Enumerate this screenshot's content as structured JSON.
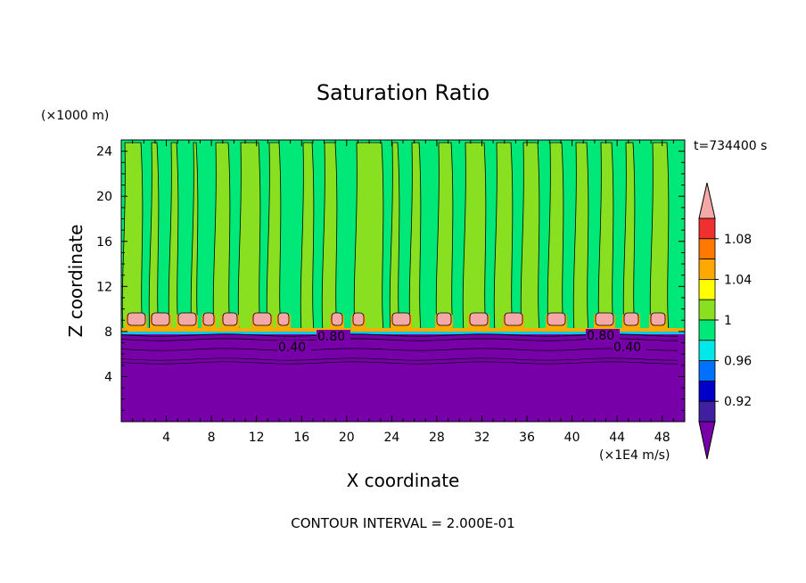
{
  "chart_data": {
    "type": "heatmap",
    "title": "Saturation Ratio",
    "xlabel": "X coordinate",
    "ylabel": "Z coordinate",
    "x_unit": "(×1E4 m/s)",
    "y_unit": "(×1000 m)",
    "time_label": "t=734400 s",
    "footer": "CONTOUR INTERVAL = 2.000E-01",
    "xlim": [
      0,
      50
    ],
    "ylim": [
      0,
      25
    ],
    "x_ticks": [
      "4",
      "8",
      "12",
      "16",
      "20",
      "24",
      "28",
      "32",
      "36",
      "40",
      "44",
      "48"
    ],
    "y_ticks": [
      "4",
      "8",
      "12",
      "16",
      "20",
      "24"
    ],
    "colorbar": {
      "levels_desc": [
        {
          "color": "#f4a8a8"
        },
        {
          "color": "#f03030"
        },
        {
          "color": "#ff7800"
        },
        {
          "color": "#ffa800"
        },
        {
          "color": "#ffff00"
        },
        {
          "color": "#88e020"
        },
        {
          "color": "#00e878"
        },
        {
          "color": "#00e8e8"
        },
        {
          "color": "#0070ff"
        },
        {
          "color": "#0000c8"
        },
        {
          "color": "#4020a0"
        },
        {
          "color": "#7800a8"
        }
      ],
      "tick_labels": [
        "1.08",
        "1.04",
        "1",
        "0.96",
        "0.92"
      ]
    },
    "contour_labels": [
      "0.80",
      "0.40",
      "0.80",
      "0.40"
    ],
    "regions": {
      "upper_columns_value": "1",
      "cloud_layer_value": "1.08",
      "cloud_layer_z": 8.6,
      "dry_layer_value": "0.40",
      "dry_layer_top_z": 7.9
    }
  }
}
